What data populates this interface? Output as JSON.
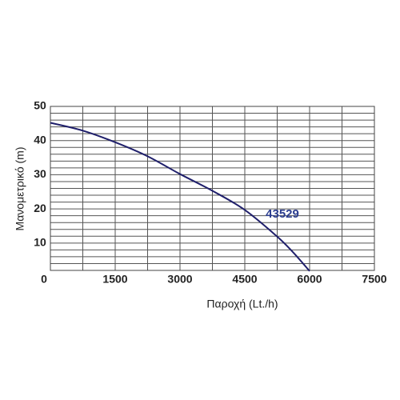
{
  "chart_data": {
    "type": "line",
    "x_label": "Παροχή (Lt./h)",
    "y_label": "Μανομετρικό  (m)",
    "xlim": [
      0,
      7500
    ],
    "xticks": [
      0,
      1500,
      3000,
      4500,
      6000,
      7500
    ],
    "x_minor_ticks": [
      750,
      2250,
      3750,
      5250,
      6750
    ],
    "ylim": [
      2,
      50
    ],
    "yticks": [
      10,
      20,
      30,
      40,
      50
    ],
    "y_minor_ticks": [
      4,
      6,
      8,
      12,
      14,
      16,
      18,
      22,
      24,
      26,
      28,
      32,
      34,
      36,
      38,
      42,
      44,
      46,
      48
    ],
    "grid": true,
    "x": [
      0,
      750,
      1500,
      2250,
      3000,
      3750,
      4500,
      5250,
      5625,
      6000
    ],
    "series": [
      {
        "name": "43529",
        "color": "#1f1f6b",
        "label_color": "#2b3d8f",
        "values": [
          45.2,
          42.9,
          39.5,
          35.4,
          30.2,
          25.3,
          19.7,
          11.9,
          7.2,
          1.8
        ]
      }
    ]
  }
}
